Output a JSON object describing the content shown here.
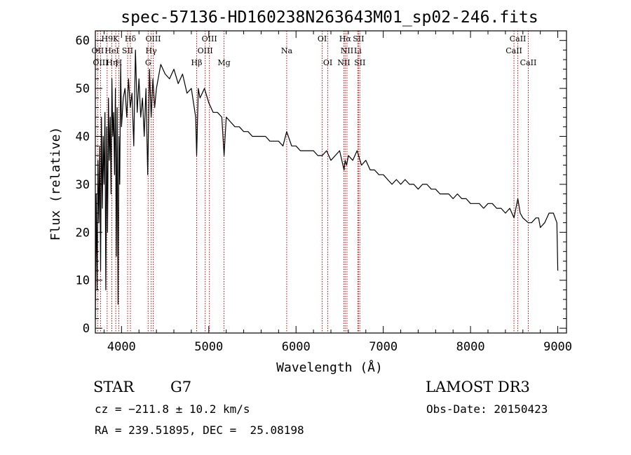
{
  "chart_data": {
    "type": "line",
    "title": "spec-57136-HD160238N263643M01_sp02-246.fits",
    "xlabel": "Wavelength (Å)",
    "ylabel": "Flux (relative)",
    "xlim": [
      3700,
      9100
    ],
    "ylim": [
      -1,
      62
    ],
    "xticks": [
      4000,
      5000,
      6000,
      7000,
      8000,
      9000
    ],
    "yticks": [
      0,
      10,
      20,
      30,
      40,
      50,
      60
    ],
    "series": [
      {
        "name": "flux",
        "x": [
          3700,
          3710,
          3720,
          3730,
          3740,
          3750,
          3760,
          3770,
          3780,
          3790,
          3800,
          3810,
          3820,
          3830,
          3840,
          3850,
          3860,
          3870,
          3880,
          3890,
          3900,
          3910,
          3920,
          3930,
          3940,
          3950,
          3960,
          3970,
          3980,
          3990,
          4000,
          4020,
          4040,
          4060,
          4080,
          4100,
          4120,
          4140,
          4160,
          4180,
          4200,
          4220,
          4240,
          4260,
          4280,
          4300,
          4320,
          4340,
          4360,
          4380,
          4400,
          4450,
          4500,
          4550,
          4600,
          4650,
          4700,
          4750,
          4800,
          4850,
          4861,
          4880,
          4900,
          4950,
          5000,
          5050,
          5100,
          5150,
          5175,
          5200,
          5250,
          5300,
          5350,
          5400,
          5450,
          5500,
          5550,
          5600,
          5650,
          5700,
          5750,
          5800,
          5850,
          5893,
          5950,
          6000,
          6050,
          6100,
          6150,
          6200,
          6250,
          6300,
          6350,
          6400,
          6450,
          6500,
          6550,
          6563,
          6580,
          6600,
          6650,
          6700,
          6750,
          6800,
          6850,
          6900,
          6950,
          7000,
          7050,
          7100,
          7150,
          7200,
          7250,
          7300,
          7350,
          7400,
          7450,
          7500,
          7550,
          7600,
          7650,
          7700,
          7750,
          7800,
          7850,
          7900,
          7950,
          8000,
          8050,
          8100,
          8150,
          8200,
          8250,
          8300,
          8350,
          8400,
          8450,
          8498,
          8542,
          8570,
          8600,
          8662,
          8700,
          8750,
          8780,
          8800,
          8850,
          8900,
          8950,
          8990,
          9000
        ],
        "y": [
          2,
          28,
          8,
          35,
          22,
          38,
          12,
          44,
          25,
          40,
          30,
          45,
          8,
          42,
          20,
          48,
          35,
          44,
          28,
          52,
          40,
          45,
          32,
          50,
          15,
          46,
          5,
          40,
          30,
          55,
          42,
          48,
          50,
          44,
          52,
          46,
          49,
          38,
          58,
          45,
          52,
          44,
          48,
          40,
          50,
          32,
          54,
          44,
          52,
          46,
          50,
          55,
          53,
          52,
          54,
          51,
          53,
          49,
          50,
          44,
          36,
          50,
          48,
          50,
          47,
          45,
          45,
          44,
          36,
          44,
          43,
          42,
          42,
          41,
          41,
          40,
          40,
          40,
          40,
          39,
          39,
          39,
          38,
          41,
          38,
          38,
          37,
          37,
          37,
          37,
          36,
          36,
          37,
          35,
          36,
          37,
          33,
          35,
          34,
          36,
          35,
          37,
          34,
          35,
          33,
          33,
          32,
          32,
          31,
          30,
          31,
          30,
          31,
          30,
          30,
          29,
          30,
          30,
          29,
          29,
          28,
          28,
          28,
          27,
          28,
          27,
          27,
          26,
          26,
          26,
          25,
          26,
          26,
          25,
          25,
          24,
          25,
          23,
          27,
          24,
          23,
          22,
          22,
          23,
          23,
          21,
          22,
          24,
          24,
          22,
          12
        ]
      }
    ],
    "spectral_lines": [
      {
        "label": "H9",
        "wavelength": 3835,
        "row": 0
      },
      {
        "label": "K",
        "wavelength": 3934,
        "row": 0
      },
      {
        "label": "Hδ",
        "wavelength": 4102,
        "row": 0
      },
      {
        "label": "OII",
        "wavelength": 3727,
        "row": 1
      },
      {
        "label": "HeI",
        "wavelength": 3889,
        "row": 1
      },
      {
        "label": "SII",
        "wavelength": 4070,
        "row": 1
      },
      {
        "label": "OIII",
        "wavelength": 3760,
        "row": 2
      },
      {
        "label": "Hη",
        "wavelength": 3889,
        "row": 2
      },
      {
        "label": "H",
        "wavelength": 3969,
        "row": 2
      },
      {
        "label": "OIII",
        "wavelength": 4363,
        "row": 0
      },
      {
        "label": "Hγ",
        "wavelength": 4340,
        "row": 1
      },
      {
        "label": "G",
        "wavelength": 4305,
        "row": 2
      },
      {
        "label": "OIII",
        "wavelength": 5007,
        "row": 0
      },
      {
        "label": "OIII",
        "wavelength": 4959,
        "row": 1
      },
      {
        "label": "Hβ",
        "wavelength": 4861,
        "row": 2
      },
      {
        "label": "Mg",
        "wavelength": 5175,
        "row": 2
      },
      {
        "label": "Na",
        "wavelength": 5893,
        "row": 1
      },
      {
        "label": "OI",
        "wavelength": 6300,
        "row": 0
      },
      {
        "label": "OI",
        "wavelength": 6364,
        "row": 2
      },
      {
        "label": "Hα",
        "wavelength": 6563,
        "row": 0
      },
      {
        "label": "SII",
        "wavelength": 6716,
        "row": 0
      },
      {
        "label": "NII",
        "wavelength": 6584,
        "row": 1
      },
      {
        "label": "Li",
        "wavelength": 6708,
        "row": 1
      },
      {
        "label": "NII",
        "wavelength": 6548,
        "row": 2
      },
      {
        "label": "SII",
        "wavelength": 6731,
        "row": 2
      },
      {
        "label": "CaII",
        "wavelength": 8542,
        "row": 0
      },
      {
        "label": "CaII",
        "wavelength": 8498,
        "row": 1
      },
      {
        "label": "CaII",
        "wavelength": 8662,
        "row": 2
      }
    ]
  },
  "info": {
    "object_class": "STAR",
    "subclass": "G7",
    "cz": "cz = −211.8 ± 10.2 km/s",
    "coords": "RA = 239.51895, DEC =  25.08198",
    "survey": "LAMOST DR3",
    "obs_date": "Obs-Date: 20150423"
  },
  "colors": {
    "line": "#000000",
    "marker": "#cc0000"
  }
}
